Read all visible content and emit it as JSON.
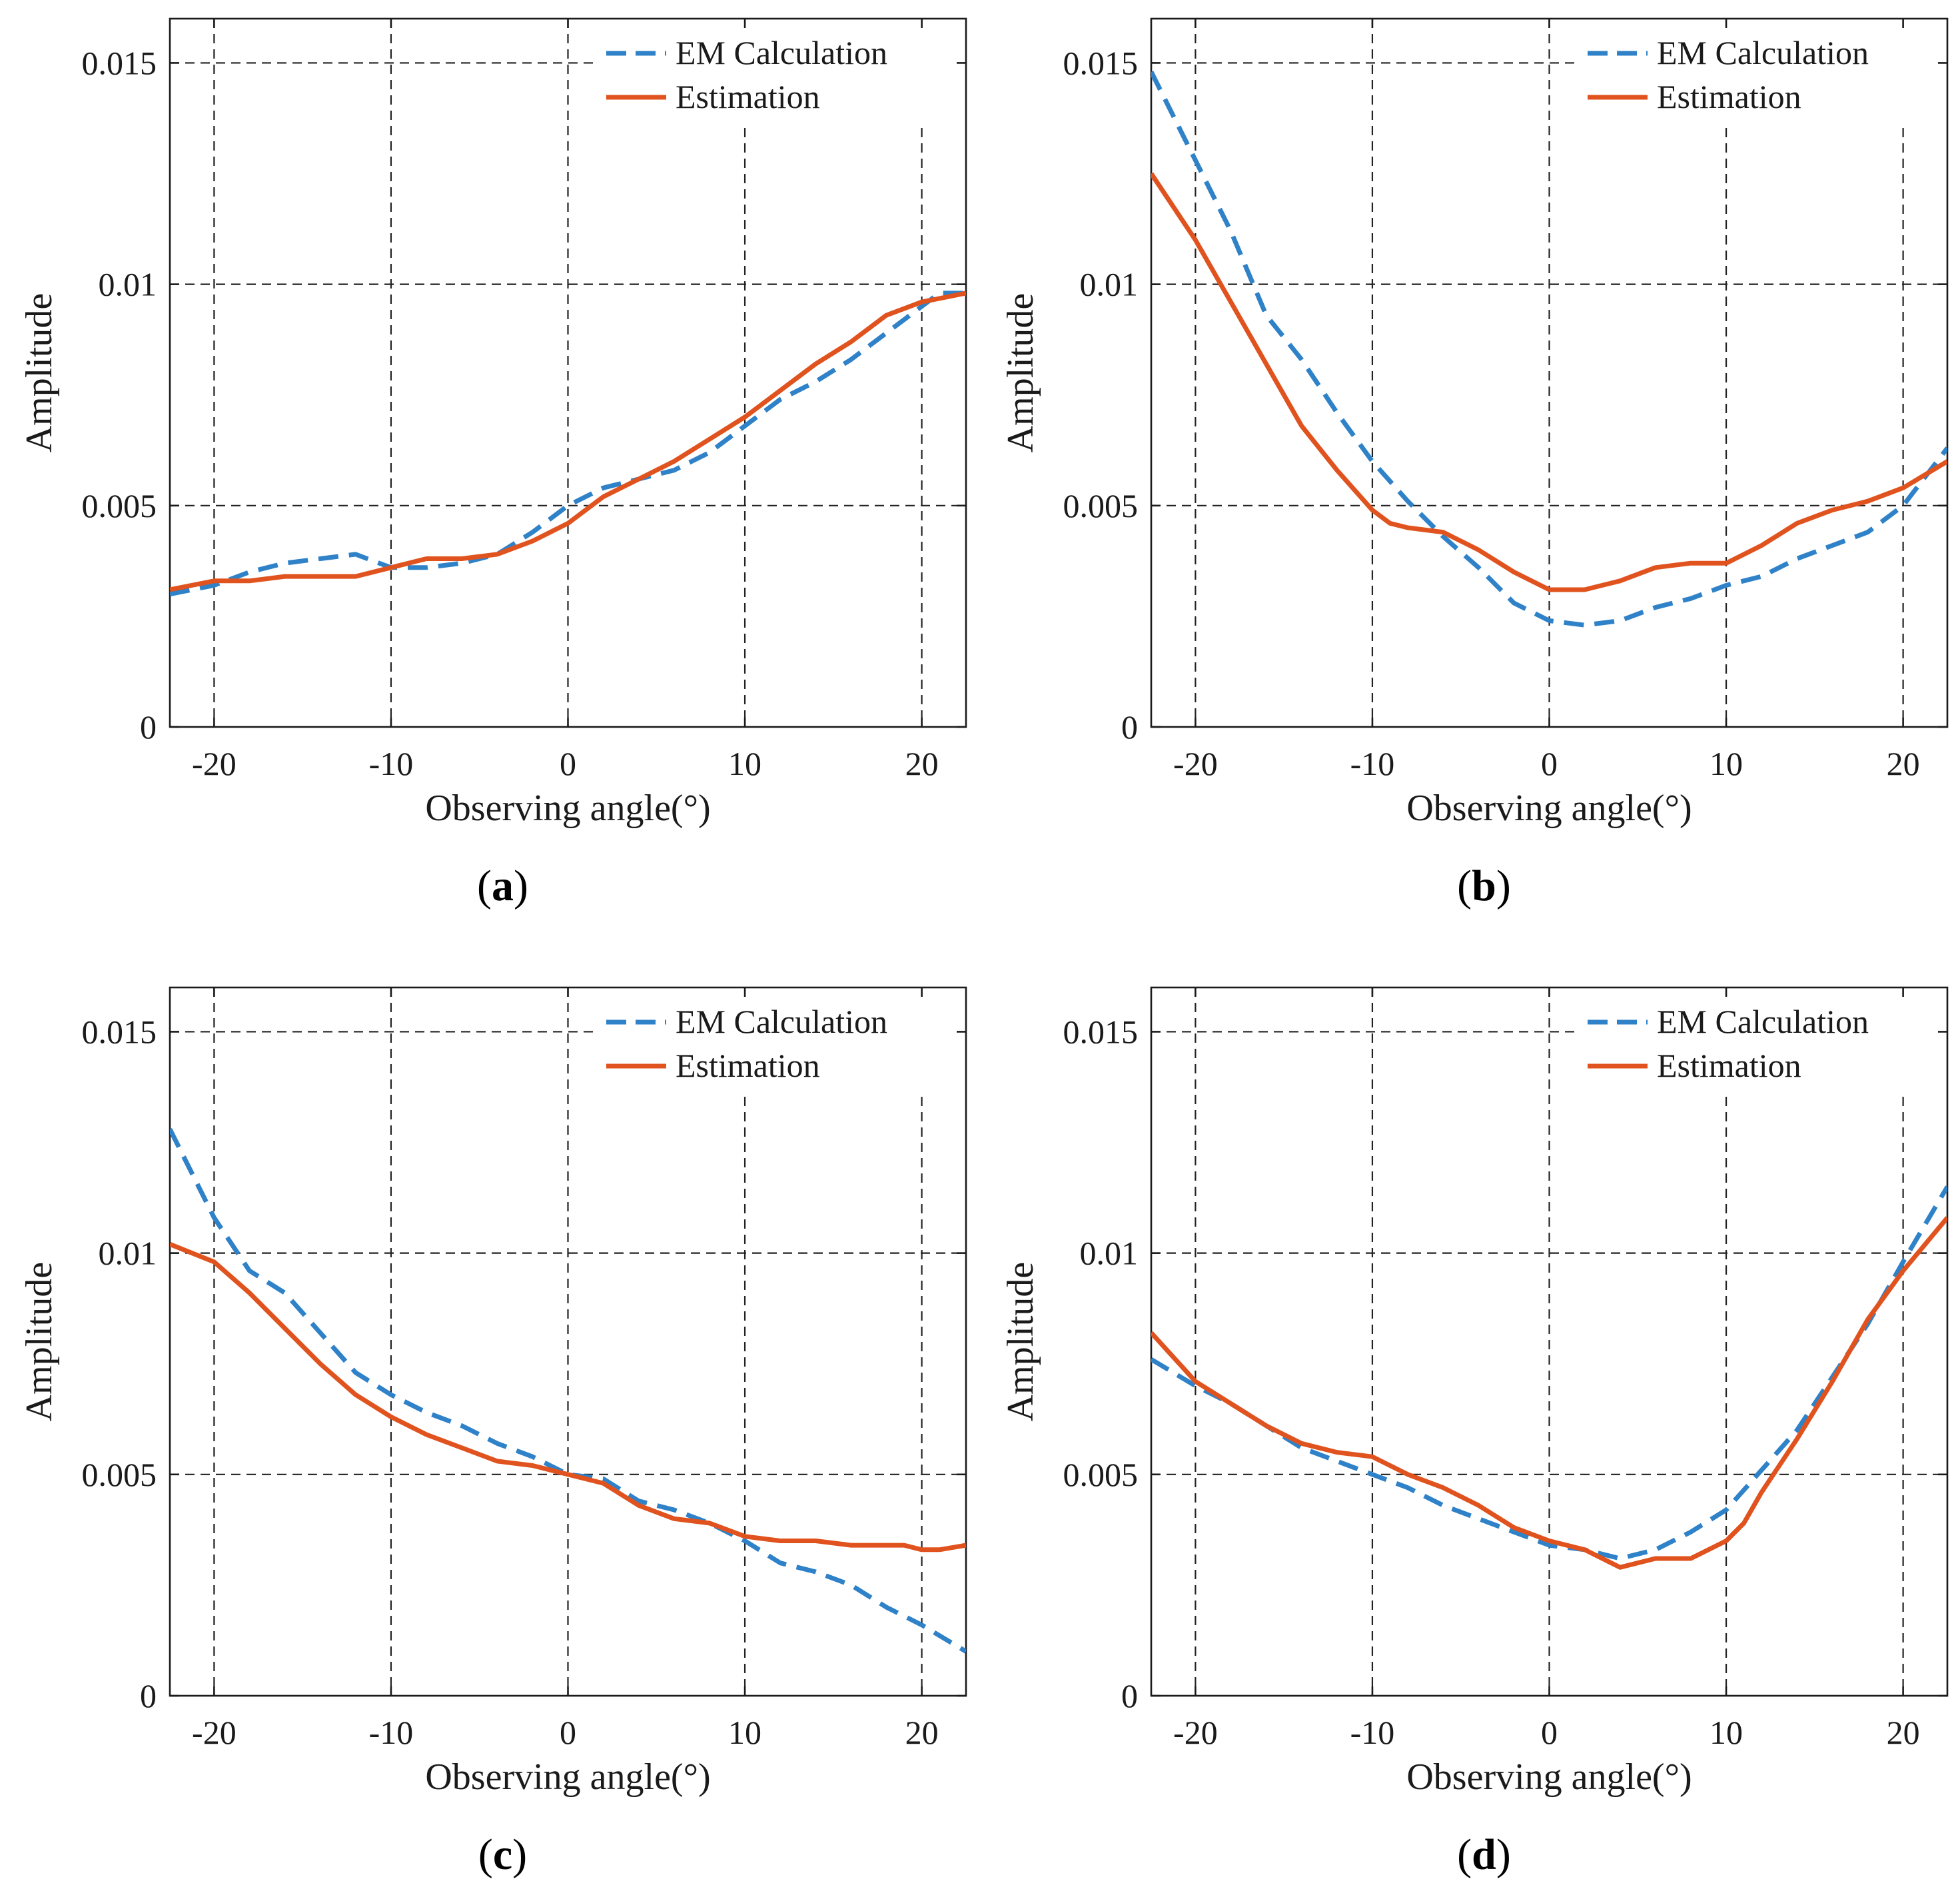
{
  "figure": {
    "legend_labels": [
      "EM Calculation",
      "Estimation"
    ],
    "colors": {
      "em": "#2f82c8",
      "est": "#e0531f",
      "axes": "#1a1a1a",
      "grid": "#222222"
    }
  },
  "chart_data": [
    {
      "panel": "a",
      "caption": {
        "open": "(",
        "letter": "a",
        "close": ")"
      },
      "type": "line",
      "xlabel": "Observing angle(°)",
      "ylabel": "Amplitude",
      "xlim": [
        -22.5,
        22.5
      ],
      "ylim": [
        0,
        0.016
      ],
      "xticks": [
        -20,
        -10,
        0,
        10,
        20
      ],
      "xtick_labels": [
        "-20",
        "-10",
        "0",
        "10",
        "20"
      ],
      "yticks": [
        0,
        0.005,
        0.01,
        0.015
      ],
      "ytick_labels": [
        "0",
        "0.005",
        "0.01",
        "0.015"
      ],
      "grid": true,
      "legend_position": "top-right",
      "series": [
        {
          "name": "EM Calculation",
          "style": "dashed",
          "x": [
            -22.5,
            -20,
            -18,
            -16,
            -14,
            -12,
            -10,
            -8,
            -6,
            -4,
            -2,
            0,
            2,
            4,
            6,
            8,
            10,
            12,
            14,
            16,
            18,
            20,
            21,
            22.5
          ],
          "y": [
            0.003,
            0.0032,
            0.0035,
            0.0037,
            0.0038,
            0.0039,
            0.0036,
            0.0036,
            0.0037,
            0.0039,
            0.0044,
            0.005,
            0.0054,
            0.0056,
            0.0058,
            0.0062,
            0.0068,
            0.0074,
            0.0078,
            0.0083,
            0.0089,
            0.0095,
            0.0098,
            0.0098
          ]
        },
        {
          "name": "Estimation",
          "style": "solid",
          "x": [
            -22.5,
            -20,
            -18,
            -16,
            -14,
            -12,
            -10,
            -8,
            -6,
            -4,
            -2,
            0,
            2,
            4,
            6,
            8,
            10,
            12,
            14,
            16,
            18,
            20,
            22.5
          ],
          "y": [
            0.0031,
            0.0033,
            0.0033,
            0.0034,
            0.0034,
            0.0034,
            0.0036,
            0.0038,
            0.0038,
            0.0039,
            0.0042,
            0.0046,
            0.0052,
            0.0056,
            0.006,
            0.0065,
            0.007,
            0.0076,
            0.0082,
            0.0087,
            0.0093,
            0.0096,
            0.0098
          ]
        }
      ]
    },
    {
      "panel": "b",
      "caption": {
        "open": "(",
        "letter": "b",
        "close": ")"
      },
      "type": "line",
      "xlabel": "Observing angle(°)",
      "ylabel": "Amplitude",
      "xlim": [
        -22.5,
        22.5
      ],
      "ylim": [
        0,
        0.016
      ],
      "xticks": [
        -20,
        -10,
        0,
        10,
        20
      ],
      "xtick_labels": [
        "-20",
        "-10",
        "0",
        "10",
        "20"
      ],
      "yticks": [
        0,
        0.005,
        0.01,
        0.015
      ],
      "ytick_labels": [
        "0",
        "0.005",
        "0.01",
        "0.015"
      ],
      "grid": true,
      "legend_position": "top-right",
      "series": [
        {
          "name": "EM Calculation",
          "style": "dashed",
          "x": [
            -22.5,
            -20,
            -18,
            -16,
            -14,
            -12,
            -10,
            -8,
            -6,
            -4,
            -2,
            0,
            2,
            4,
            6,
            8,
            10,
            12,
            14,
            16,
            18,
            20,
            22.5
          ],
          "y": [
            0.0148,
            0.0128,
            0.0112,
            0.0093,
            0.0083,
            0.0071,
            0.006,
            0.0051,
            0.0043,
            0.0036,
            0.0028,
            0.0024,
            0.0023,
            0.0024,
            0.0027,
            0.0029,
            0.0032,
            0.0034,
            0.0038,
            0.0041,
            0.0044,
            0.005,
            0.0063
          ]
        },
        {
          "name": "Estimation",
          "style": "solid",
          "x": [
            -22.5,
            -20,
            -18,
            -16,
            -14,
            -12,
            -10,
            -9,
            -8,
            -6,
            -4,
            -2,
            0,
            1,
            2,
            4,
            6,
            8,
            10,
            12,
            14,
            16,
            18,
            20,
            22.5
          ],
          "y": [
            0.0125,
            0.011,
            0.0096,
            0.0082,
            0.0068,
            0.0058,
            0.0049,
            0.0046,
            0.0045,
            0.0044,
            0.004,
            0.0035,
            0.0031,
            0.0031,
            0.0031,
            0.0033,
            0.0036,
            0.0037,
            0.0037,
            0.0041,
            0.0046,
            0.0049,
            0.0051,
            0.0054,
            0.006
          ]
        }
      ]
    },
    {
      "panel": "c",
      "caption": {
        "open": "(",
        "letter": "c",
        "close": ")"
      },
      "type": "line",
      "xlabel": "Observing angle(°)",
      "ylabel": "Amplitude",
      "xlim": [
        -22.5,
        22.5
      ],
      "ylim": [
        0,
        0.016
      ],
      "xticks": [
        -20,
        -10,
        0,
        10,
        20
      ],
      "xtick_labels": [
        "-20",
        "-10",
        "0",
        "10",
        "20"
      ],
      "yticks": [
        0,
        0.005,
        0.01,
        0.015
      ],
      "ytick_labels": [
        "0",
        "0.005",
        "0.01",
        "0.015"
      ],
      "grid": true,
      "legend_position": "top-right",
      "series": [
        {
          "name": "EM Calculation",
          "style": "dashed",
          "x": [
            -22.5,
            -20,
            -18,
            -16,
            -14,
            -12,
            -10,
            -8,
            -6,
            -4,
            -2,
            0,
            2,
            4,
            6,
            8,
            10,
            12,
            14,
            16,
            18,
            20,
            22.5
          ],
          "y": [
            0.0128,
            0.0108,
            0.0096,
            0.0091,
            0.0082,
            0.0073,
            0.0068,
            0.0064,
            0.0061,
            0.0057,
            0.0054,
            0.005,
            0.0049,
            0.0044,
            0.0042,
            0.0039,
            0.0035,
            0.003,
            0.0028,
            0.0025,
            0.002,
            0.0016,
            0.001
          ]
        },
        {
          "name": "Estimation",
          "style": "solid",
          "x": [
            -22.5,
            -20,
            -18,
            -16,
            -14,
            -12,
            -10,
            -8,
            -6,
            -4,
            -2,
            0,
            2,
            4,
            6,
            8,
            10,
            12,
            14,
            16,
            18,
            19,
            20,
            21,
            22.5
          ],
          "y": [
            0.0102,
            0.0098,
            0.0091,
            0.0083,
            0.0075,
            0.0068,
            0.0063,
            0.0059,
            0.0056,
            0.0053,
            0.0052,
            0.005,
            0.0048,
            0.0043,
            0.004,
            0.0039,
            0.0036,
            0.0035,
            0.0035,
            0.0034,
            0.0034,
            0.0034,
            0.0033,
            0.0033,
            0.0034
          ]
        }
      ]
    },
    {
      "panel": "d",
      "caption": {
        "open": "(",
        "letter": "d",
        "close": ")"
      },
      "type": "line",
      "xlabel": "Observing angle(°)",
      "ylabel": "Amplitude",
      "xlim": [
        -22.5,
        22.5
      ],
      "ylim": [
        0,
        0.016
      ],
      "xticks": [
        -20,
        -10,
        0,
        10,
        20
      ],
      "xtick_labels": [
        "-20",
        "-10",
        "0",
        "10",
        "20"
      ],
      "yticks": [
        0,
        0.005,
        0.01,
        0.015
      ],
      "ytick_labels": [
        "0",
        "0.005",
        "0.01",
        "0.015"
      ],
      "grid": true,
      "legend_position": "top-right",
      "series": [
        {
          "name": "EM Calculation",
          "style": "dashed",
          "x": [
            -22.5,
            -20,
            -18,
            -16,
            -14,
            -12,
            -10,
            -8,
            -6,
            -4,
            -2,
            0,
            2,
            4,
            6,
            8,
            10,
            12,
            14,
            16,
            18,
            20,
            22.5
          ],
          "y": [
            0.0076,
            0.007,
            0.0066,
            0.0061,
            0.0056,
            0.0053,
            0.005,
            0.0047,
            0.0043,
            0.004,
            0.0037,
            0.0034,
            0.0033,
            0.0031,
            0.0033,
            0.0037,
            0.0042,
            0.0051,
            0.006,
            0.0072,
            0.0084,
            0.0098,
            0.0115
          ]
        },
        {
          "name": "Estimation",
          "style": "solid",
          "x": [
            -22.5,
            -20,
            -18,
            -16,
            -14,
            -12,
            -10,
            -8,
            -6,
            -4,
            -2,
            0,
            2,
            4,
            6,
            8,
            10,
            11,
            12,
            14,
            16,
            18,
            20,
            22.5
          ],
          "y": [
            0.0082,
            0.0071,
            0.0066,
            0.0061,
            0.0057,
            0.0055,
            0.0054,
            0.005,
            0.0047,
            0.0043,
            0.0038,
            0.0035,
            0.0033,
            0.0029,
            0.0031,
            0.0031,
            0.0035,
            0.0039,
            0.0046,
            0.0058,
            0.0071,
            0.0085,
            0.0096,
            0.0108
          ]
        }
      ]
    }
  ]
}
